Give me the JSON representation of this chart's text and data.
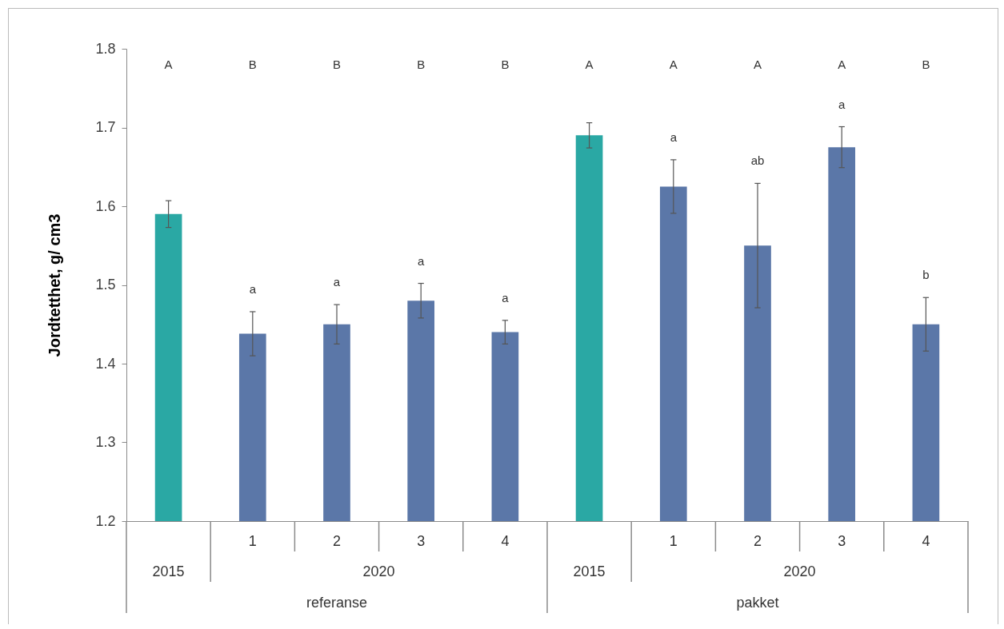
{
  "chart_data": {
    "type": "bar",
    "ylabel": "Jordtetthet, g/ cm3",
    "categories": [
      null,
      "1",
      "2",
      "3",
      "4",
      null,
      "1",
      "2",
      "3",
      "4"
    ],
    "values": [
      1.59,
      1.438,
      1.45,
      1.48,
      1.44,
      1.69,
      1.625,
      1.55,
      1.675,
      1.45
    ],
    "errors": [
      0.017,
      0.028,
      0.025,
      0.022,
      0.015,
      0.016,
      0.034,
      0.079,
      0.026,
      0.034
    ],
    "colors": [
      "#2aa8a4",
      "#5b77a8",
      "#5b77a8",
      "#5b77a8",
      "#5b77a8",
      "#2aa8a4",
      "#5b77a8",
      "#5b77a8",
      "#5b77a8",
      "#5b77a8"
    ],
    "ylim": [
      1.2,
      1.8
    ],
    "yticks": [
      1.2,
      1.3,
      1.4,
      1.5,
      1.6,
      1.7,
      1.8
    ],
    "grid": false,
    "annotations": [
      "A",
      "B",
      "B",
      "B",
      "B",
      "A",
      "A",
      "A",
      "A",
      "B",
      "a",
      "a",
      "a",
      "a",
      "a",
      "ab",
      "a",
      "b",
      "2015",
      "2020",
      "referanse",
      "2015",
      "2020",
      "pakket"
    ]
  }
}
